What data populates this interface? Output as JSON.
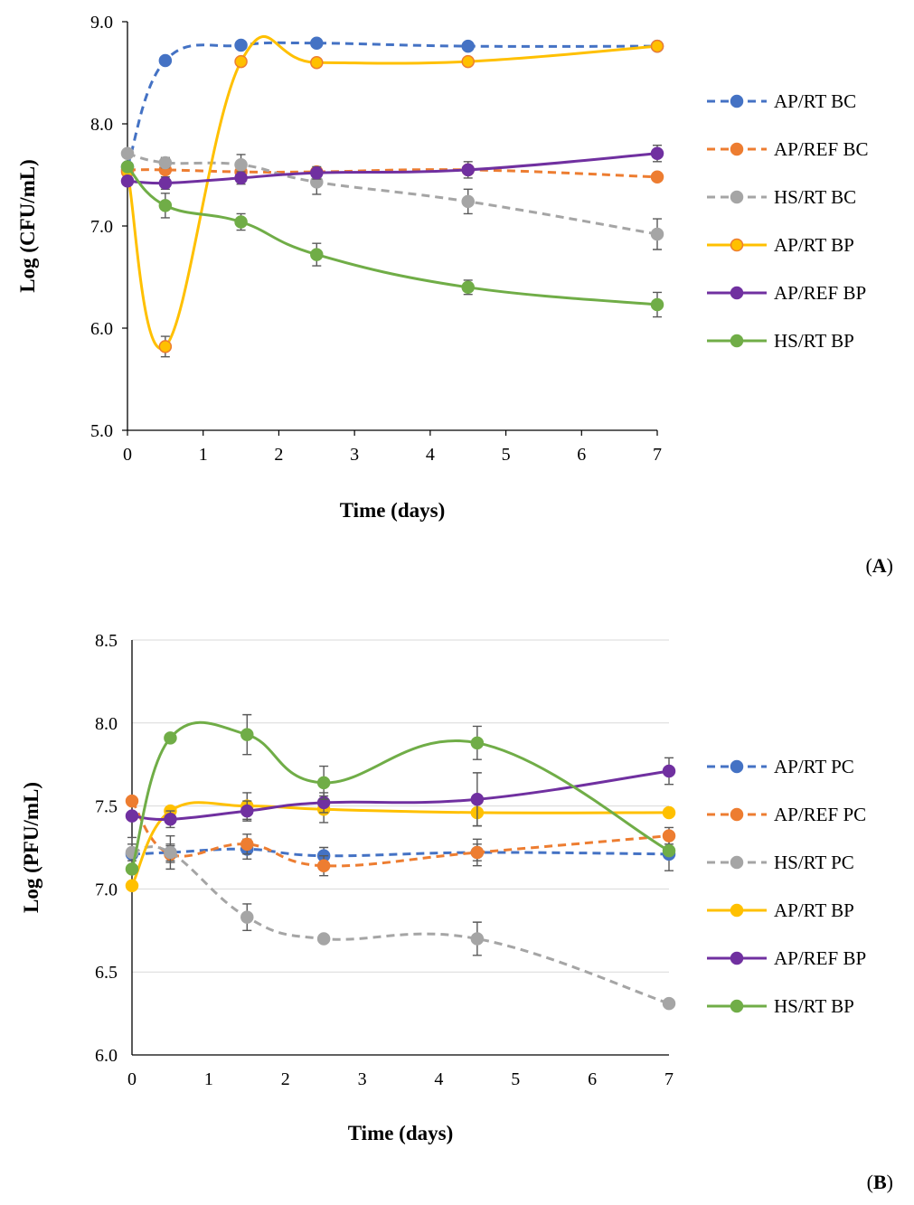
{
  "chart_data": [
    {
      "type": "line",
      "panel_label": "A",
      "xlabel": "Time (days)",
      "ylabel": "Log (CFU/mL)",
      "xlim": [
        0,
        7
      ],
      "ylim": [
        5.0,
        9.0
      ],
      "xticks": [
        "0",
        "1",
        "2",
        "3",
        "4",
        "5",
        "6",
        "7"
      ],
      "yticks": [
        "5.0",
        "6.0",
        "7.0",
        "8.0",
        "9.0"
      ],
      "grid": false,
      "legend_position": "right",
      "x": [
        0,
        0.5,
        1.5,
        2.5,
        4.5,
        7
      ],
      "series": [
        {
          "name": "AP/RT BC",
          "color": "#4472C4",
          "dashed": true,
          "marker_edge": "#4472C4",
          "values": [
            7.58,
            8.62,
            8.77,
            8.79,
            8.76,
            8.76
          ],
          "errors": [
            0,
            0,
            0,
            0,
            0,
            0
          ]
        },
        {
          "name": "AP/REF BC",
          "color": "#ED7D31",
          "dashed": true,
          "marker_edge": "#ED7D31",
          "values": [
            7.55,
            7.55,
            7.53,
            7.53,
            7.55,
            7.48
          ],
          "errors": [
            0,
            0.03,
            0.03,
            0.03,
            0.03,
            0
          ]
        },
        {
          "name": "HS/RT BC",
          "color": "#A5A5A5",
          "dashed": true,
          "marker_edge": "#A5A5A5",
          "values": [
            7.71,
            7.62,
            7.6,
            7.43,
            7.24,
            6.92
          ],
          "errors": [
            0,
            0.05,
            0.1,
            0.12,
            0.12,
            0.15
          ]
        },
        {
          "name": "AP/RT BP",
          "color": "#FFC000",
          "dashed": false,
          "marker_edge": "#ED7D31",
          "values": [
            7.53,
            5.82,
            8.61,
            8.6,
            8.61,
            8.76
          ],
          "errors": [
            0,
            0.1,
            0,
            0,
            0,
            0
          ]
        },
        {
          "name": "AP/REF BP",
          "color": "#7030A0",
          "dashed": false,
          "marker_edge": "#7030A0",
          "values": [
            7.44,
            7.42,
            7.47,
            7.52,
            7.55,
            7.71
          ],
          "errors": [
            0,
            0.06,
            0.06,
            0.06,
            0.08,
            0.08
          ]
        },
        {
          "name": "HS/RT BP",
          "color": "#70AD47",
          "dashed": false,
          "marker_edge": "#70AD47",
          "values": [
            7.58,
            7.2,
            7.04,
            6.72,
            6.4,
            6.23
          ],
          "errors": [
            0,
            0.12,
            0.08,
            0.11,
            0.07,
            0.12
          ]
        }
      ]
    },
    {
      "type": "line",
      "panel_label": "B",
      "xlabel": "Time (days)",
      "ylabel": "Log (PFU/mL)",
      "xlim": [
        0,
        7
      ],
      "ylim": [
        6.0,
        8.5
      ],
      "xticks": [
        "0",
        "1",
        "2",
        "3",
        "4",
        "5",
        "6",
        "7"
      ],
      "yticks": [
        "6.0",
        "6.5",
        "7.0",
        "7.5",
        "8.0",
        "8.5"
      ],
      "grid": true,
      "legend_position": "right",
      "x": [
        0,
        0.5,
        1.5,
        2.5,
        4.5,
        7
      ],
      "series": [
        {
          "name": "AP/RT PC",
          "color": "#4472C4",
          "dashed": true,
          "marker_edge": "#4472C4",
          "values": [
            7.21,
            7.22,
            7.24,
            7.2,
            7.22,
            7.21
          ],
          "errors": [
            0.1,
            0.05,
            0.06,
            0.05,
            0.05,
            0.1
          ]
        },
        {
          "name": "AP/REF PC",
          "color": "#ED7D31",
          "dashed": true,
          "marker_edge": "#ED7D31",
          "values": [
            7.53,
            7.21,
            7.27,
            7.14,
            7.22,
            7.32
          ],
          "errors": [
            0,
            0.05,
            0.06,
            0.06,
            0.08,
            0.05
          ]
        },
        {
          "name": "HS/RT PC",
          "color": "#A5A5A5",
          "dashed": true,
          "marker_edge": "#A5A5A5",
          "values": [
            7.22,
            7.22,
            6.83,
            6.7,
            6.7,
            6.31
          ],
          "errors": [
            0.05,
            0.1,
            0.08,
            0,
            0.1,
            0
          ]
        },
        {
          "name": "AP/RT BP",
          "color": "#FFC000",
          "dashed": false,
          "marker_edge": "#FFC000",
          "values": [
            7.02,
            7.47,
            7.5,
            7.48,
            7.46,
            7.46
          ],
          "errors": [
            0,
            0,
            0.08,
            0.08,
            0.08,
            0
          ]
        },
        {
          "name": "AP/REF BP",
          "color": "#7030A0",
          "dashed": false,
          "marker_edge": "#7030A0",
          "values": [
            7.44,
            7.42,
            7.47,
            7.52,
            7.54,
            7.71
          ],
          "errors": [
            0,
            0.05,
            0.06,
            0.06,
            0.16,
            0.08
          ]
        },
        {
          "name": "HS/RT BP",
          "color": "#70AD47",
          "dashed": false,
          "marker_edge": "#70AD47",
          "values": [
            7.12,
            7.91,
            7.93,
            7.64,
            7.88,
            7.23
          ],
          "errors": [
            0,
            0,
            0.12,
            0.1,
            0.1,
            0
          ]
        }
      ]
    }
  ]
}
